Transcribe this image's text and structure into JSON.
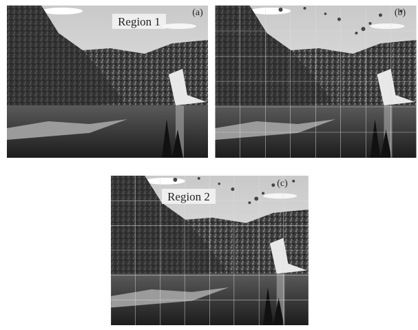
{
  "panels": [
    {
      "label": "(a)",
      "region": "Region 1"
    },
    {
      "label": "(b)"
    },
    {
      "label": "(c)",
      "region": "Region 2"
    }
  ]
}
